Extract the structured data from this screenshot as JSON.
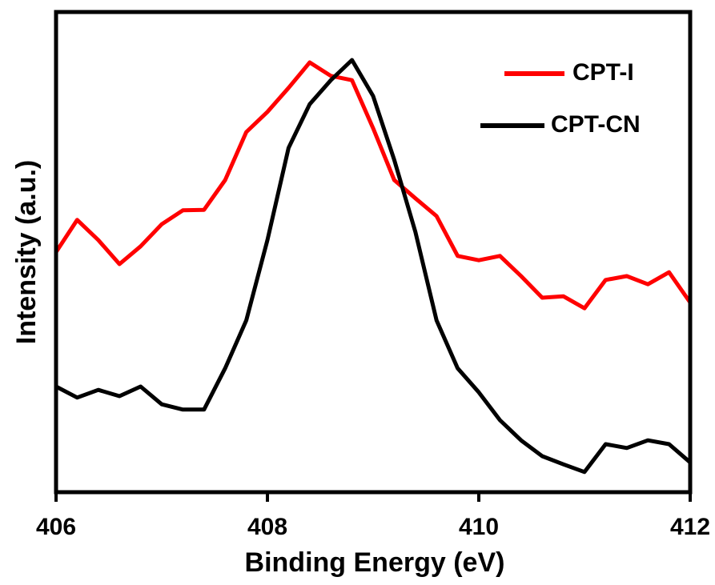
{
  "chart_data": {
    "type": "line",
    "xlabel": "Binding Energy (eV)",
    "ylabel": "Intensity (a.u.)",
    "x": [
      406,
      406.2,
      406.4,
      406.6,
      406.8,
      407,
      407.2,
      407.4,
      407.6,
      407.8,
      408,
      408.2,
      408.4,
      408.6,
      408.8,
      409,
      409.2,
      409.4,
      409.6,
      409.8,
      410,
      410.2,
      410.4,
      410.6,
      410.8,
      411,
      411.2,
      411.4,
      411.6,
      411.8,
      412
    ],
    "series": [
      {
        "name": "CPT-I",
        "color": "#ff0000",
        "values": [
          50,
          56.7,
          52.5,
          47.5,
          51.2,
          55.8,
          58.7,
          58.8,
          65,
          75,
          79.2,
          84.2,
          89.5,
          86.7,
          85.8,
          75.8,
          65,
          61.2,
          57.5,
          49.2,
          48.3,
          49.2,
          45,
          40.5,
          40.8,
          38.3,
          44.2,
          45,
          43.3,
          45.8,
          39.5
        ]
      },
      {
        "name": "CPT-CN",
        "color": "#000000",
        "values": [
          22,
          19.7,
          21.3,
          20,
          22,
          18.3,
          17.2,
          17.2,
          25.8,
          35.8,
          52.5,
          71.7,
          80.8,
          85.8,
          90,
          82.5,
          69.2,
          54.2,
          35.8,
          25.8,
          20.8,
          15,
          10.8,
          7.5,
          5.8,
          4.2,
          10,
          9.2,
          10.8,
          10,
          6.2
        ]
      }
    ],
    "xlim": [
      406,
      412
    ],
    "xticks": [
      406,
      408,
      410,
      412
    ],
    "ylim": [
      0,
      100
    ],
    "legend": "upper right"
  }
}
